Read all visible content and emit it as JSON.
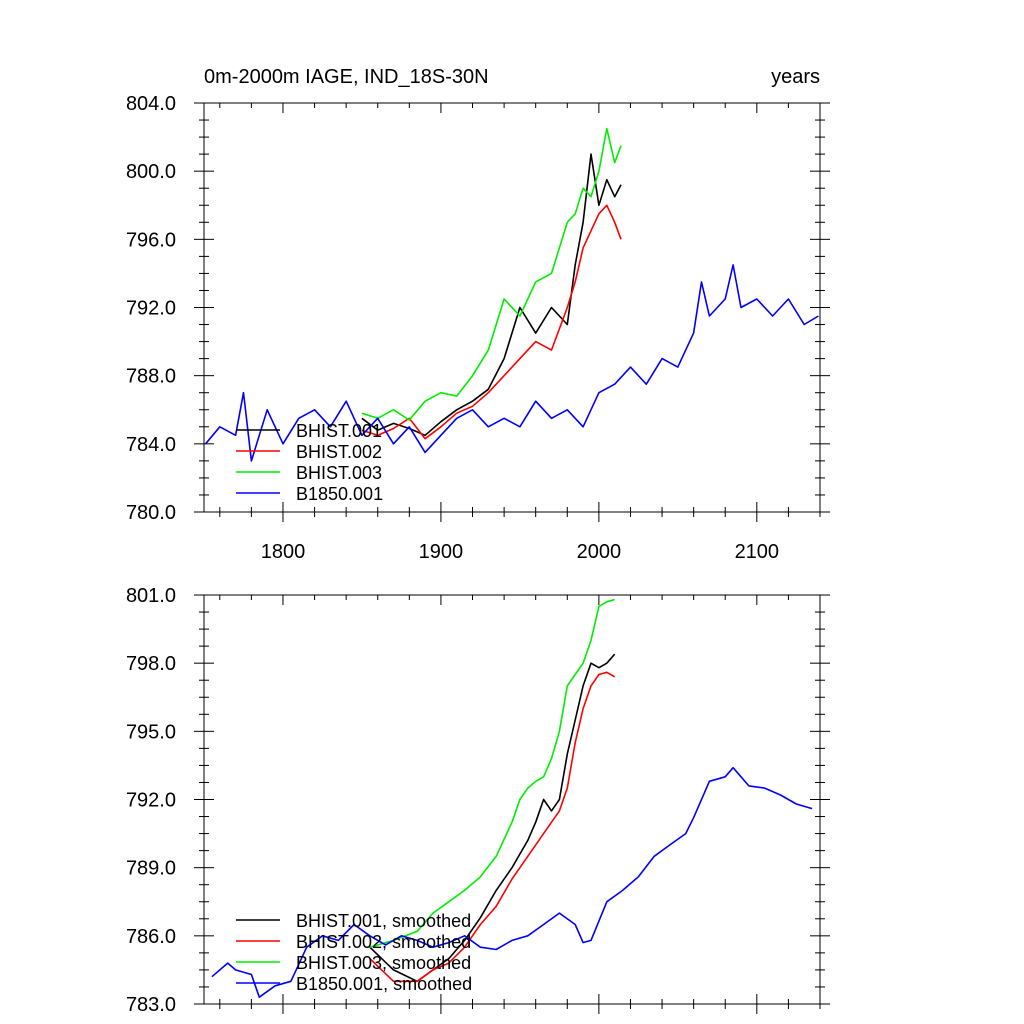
{
  "chart_data": [
    {
      "type": "line",
      "title": "0m-2000m IAGE, IND_18S-30N",
      "units": "years",
      "xlim": [
        1750,
        2140
      ],
      "ylim": [
        780,
        804
      ],
      "xticks": [
        1800,
        1900,
        2000,
        2100
      ],
      "xtick_labels": [
        "1800",
        "1900",
        "2000",
        "2100"
      ],
      "yticks": [
        780,
        784,
        788,
        792,
        796,
        800,
        804
      ],
      "ytick_labels": [
        "780.0",
        "784.0",
        "788.0",
        "792.0",
        "796.0",
        "800.0",
        "804.0"
      ],
      "legend_position": "bottom-left",
      "series": [
        {
          "name": "BHIST.001",
          "color": "#000000",
          "x": [
            1850,
            1860,
            1870,
            1880,
            1890,
            1900,
            1910,
            1920,
            1930,
            1940,
            1950,
            1960,
            1970,
            1980,
            1985,
            1990,
            1995,
            2000,
            2005,
            2010,
            2014
          ],
          "y": [
            785.5,
            784.8,
            785.2,
            784.9,
            784.5,
            785.3,
            786.0,
            786.5,
            787.2,
            789.0,
            792.0,
            790.5,
            792.0,
            791.0,
            794.5,
            797.0,
            801.0,
            798.0,
            799.5,
            798.5,
            799.2
          ]
        },
        {
          "name": "BHIST.002",
          "color": "#ff0000",
          "x": [
            1850,
            1860,
            1870,
            1880,
            1890,
            1900,
            1910,
            1920,
            1930,
            1940,
            1950,
            1960,
            1970,
            1980,
            1985,
            1990,
            1995,
            2000,
            2005,
            2010,
            2014
          ],
          "y": [
            784.8,
            784.5,
            784.9,
            785.5,
            784.3,
            785.0,
            785.8,
            786.2,
            787.0,
            788.0,
            789.0,
            790.0,
            789.5,
            792.0,
            793.5,
            795.5,
            796.5,
            797.5,
            798.0,
            797.0,
            796.0
          ]
        },
        {
          "name": "BHIST.003",
          "color": "#00ee00",
          "x": [
            1850,
            1860,
            1870,
            1880,
            1890,
            1900,
            1910,
            1920,
            1930,
            1940,
            1950,
            1960,
            1970,
            1980,
            1985,
            1990,
            1995,
            2000,
            2005,
            2010,
            2014
          ],
          "y": [
            785.8,
            785.5,
            786.0,
            785.4,
            786.5,
            787.0,
            786.8,
            788.0,
            789.5,
            792.5,
            791.5,
            793.5,
            794.0,
            797.0,
            797.5,
            799.0,
            798.5,
            800.0,
            802.5,
            800.5,
            801.5
          ]
        },
        {
          "name": "B1850.001",
          "color": "#0000ff",
          "x": [
            1751,
            1760,
            1770,
            1775,
            1780,
            1785,
            1790,
            1800,
            1810,
            1820,
            1830,
            1840,
            1850,
            1860,
            1870,
            1880,
            1890,
            1900,
            1910,
            1920,
            1930,
            1940,
            1950,
            1960,
            1970,
            1980,
            1990,
            2000,
            2010,
            2020,
            2030,
            2040,
            2050,
            2060,
            2065,
            2070,
            2080,
            2085,
            2090,
            2100,
            2110,
            2120,
            2130,
            2139
          ],
          "y": [
            784.0,
            785.0,
            784.5,
            787.0,
            783.0,
            784.5,
            786.0,
            784.0,
            785.5,
            786.0,
            785.0,
            786.5,
            784.5,
            785.5,
            784.0,
            785.0,
            783.5,
            784.5,
            785.5,
            786.0,
            785.0,
            785.5,
            785.0,
            786.5,
            785.5,
            786.0,
            785.0,
            787.0,
            787.5,
            788.5,
            787.5,
            789.0,
            788.5,
            790.5,
            793.5,
            791.5,
            792.5,
            794.5,
            792.0,
            792.5,
            791.5,
            792.5,
            791.0,
            791.5
          ]
        }
      ]
    },
    {
      "type": "line",
      "xlim": [
        1750,
        2140
      ],
      "ylim": [
        783,
        801
      ],
      "xticks": [
        1800,
        1900,
        2000,
        2100
      ],
      "yticks": [
        783,
        786,
        789,
        792,
        795,
        798,
        801
      ],
      "ytick_labels": [
        "783.0",
        "786.0",
        "789.0",
        "792.0",
        "795.0",
        "798.0",
        "801.0"
      ],
      "legend_position": "bottom-left",
      "series": [
        {
          "name": "BHIST.001, smoothed",
          "color": "#000000",
          "x": [
            1855,
            1870,
            1885,
            1895,
            1905,
            1915,
            1925,
            1935,
            1945,
            1950,
            1955,
            1960,
            1965,
            1970,
            1975,
            1980,
            1985,
            1990,
            1995,
            2000,
            2005,
            2010
          ],
          "y": [
            785.5,
            784.5,
            784.0,
            784.5,
            785.0,
            785.8,
            786.8,
            788.0,
            789.0,
            789.6,
            790.2,
            791.0,
            792.0,
            791.5,
            792.0,
            794.0,
            795.5,
            797.0,
            798.0,
            797.8,
            798.0,
            798.4
          ]
        },
        {
          "name": "BHIST.002, smoothed",
          "color": "#ff0000",
          "x": [
            1855,
            1870,
            1885,
            1895,
            1905,
            1915,
            1925,
            1935,
            1945,
            1950,
            1955,
            1960,
            1965,
            1970,
            1975,
            1980,
            1985,
            1990,
            1995,
            2000,
            2005,
            2010
          ],
          "y": [
            785.0,
            784.0,
            784.0,
            784.5,
            784.8,
            785.5,
            786.5,
            787.3,
            788.5,
            789.0,
            789.5,
            790.0,
            790.5,
            791.0,
            791.5,
            792.5,
            794.5,
            796.0,
            797.0,
            797.5,
            797.6,
            797.4
          ]
        },
        {
          "name": "BHIST.003, smoothed",
          "color": "#00ee00",
          "x": [
            1855,
            1870,
            1885,
            1895,
            1905,
            1915,
            1925,
            1935,
            1945,
            1950,
            1955,
            1960,
            1965,
            1970,
            1975,
            1980,
            1985,
            1990,
            1995,
            2000,
            2005,
            2010
          ],
          "y": [
            785.5,
            785.8,
            786.2,
            787.0,
            787.5,
            788.0,
            788.6,
            789.5,
            791.0,
            792.0,
            792.5,
            792.8,
            793.0,
            793.8,
            795.0,
            797.0,
            797.5,
            798.0,
            799.0,
            800.5,
            800.7,
            800.8
          ]
        },
        {
          "name": "B1850.001, smoothed",
          "color": "#0000ff",
          "x": [
            1755,
            1765,
            1770,
            1780,
            1785,
            1795,
            1805,
            1815,
            1825,
            1835,
            1845,
            1855,
            1865,
            1875,
            1885,
            1895,
            1905,
            1915,
            1925,
            1935,
            1945,
            1955,
            1965,
            1975,
            1985,
            1990,
            1995,
            2005,
            2015,
            2025,
            2035,
            2045,
            2055,
            2060,
            2070,
            2080,
            2085,
            2095,
            2105,
            2115,
            2125,
            2135
          ],
          "y": [
            784.2,
            784.8,
            784.5,
            784.3,
            783.3,
            783.8,
            784.0,
            785.5,
            786.0,
            785.8,
            786.5,
            786.0,
            785.6,
            786.0,
            785.8,
            785.5,
            785.7,
            786.0,
            785.5,
            785.4,
            785.8,
            786.0,
            786.5,
            787.0,
            786.5,
            785.7,
            785.8,
            787.5,
            788.0,
            788.6,
            789.5,
            790.0,
            790.5,
            791.2,
            792.8,
            793.0,
            793.4,
            792.6,
            792.5,
            792.2,
            791.8,
            791.6
          ]
        }
      ]
    }
  ]
}
